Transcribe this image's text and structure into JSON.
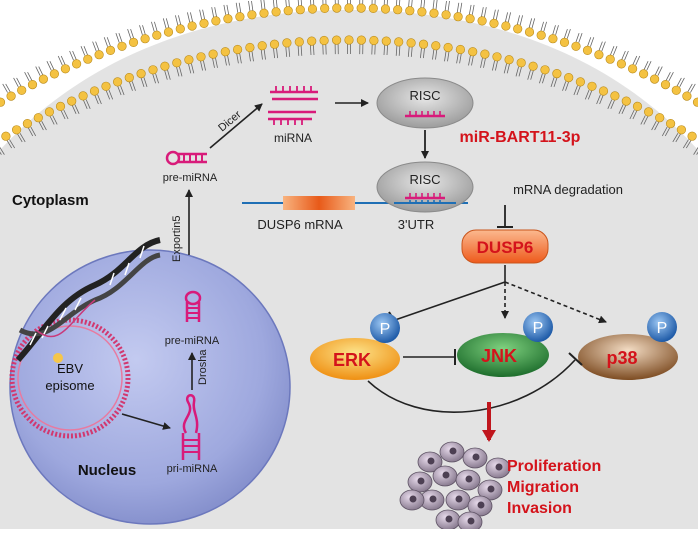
{
  "labels": {
    "cytoplasm": "Cytoplasm",
    "nucleus": "Nucleus",
    "ebv_line1": "EBV",
    "ebv_line2": "episome",
    "pri_mirna": "pri-miRNA",
    "pre_mirna_nucleus": "pre-miRNA",
    "drosha": "Drosha",
    "exportin5": "Exportin5",
    "pre_mirna_cyto": "pre-miRNA",
    "dicer": "Dicer",
    "mirna": "miRNA",
    "risc_top": "RISC",
    "risc_bottom": "RISC",
    "mir_name": "miR-BART11-3p",
    "dusp6_mrna": "DUSP6 mRNA",
    "utr": "3'UTR",
    "mrna_degradation": "mRNA degradation",
    "dusp6": "DUSP6",
    "erk": "ERK",
    "jnk": "JNK",
    "p38": "p38",
    "phospho_erk": "P",
    "phospho_jnk": "P",
    "phospho_p38": "P",
    "outcome_1": "Proliferation",
    "outcome_2": "Migration",
    "outcome_3": "Invasion"
  },
  "colors": {
    "background": "#e3e3e3",
    "membrane_head": "#f4c242",
    "nucleus": "#9ea8de",
    "rna": "#d81b7a",
    "risc": "#b4b4b4",
    "dusp6_box": "#f26a2c",
    "erk": "#f5a21b",
    "jnk": "#2f8a3e",
    "p38": "#8b5a2b",
    "phospho": "#2d6fc2",
    "highlight_text": "#d4131b"
  }
}
